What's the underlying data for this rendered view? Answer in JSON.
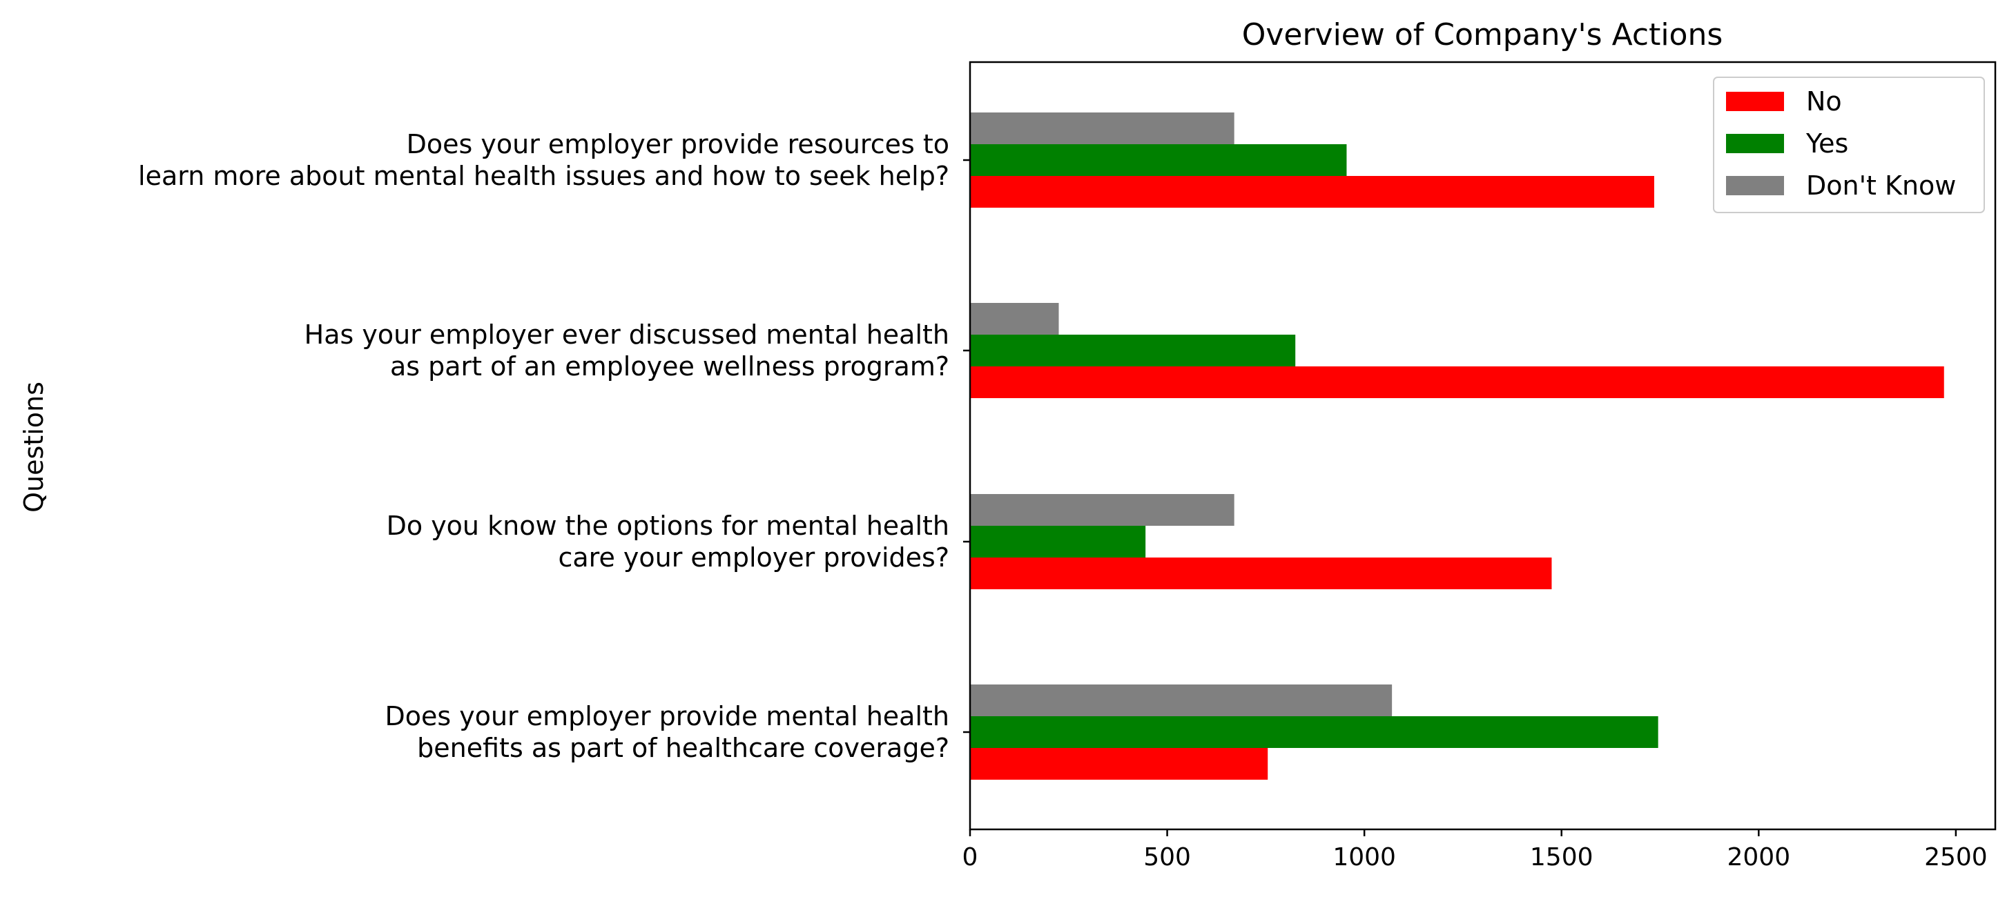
{
  "chart_data": {
    "type": "bar",
    "orientation": "horizontal",
    "title": "Overview of Company's Actions",
    "xlabel": "",
    "ylabel": "Questions",
    "xlim": [
      0,
      2600
    ],
    "xticks": [
      0,
      500,
      1000,
      1500,
      2000,
      2500
    ],
    "grid": false,
    "legend_position": "top-right",
    "categories": [
      [
        "Does your employer provide mental health ",
        "benefits as part of healthcare coverage?"
      ],
      [
        "Do you know the options for mental health ",
        "care your employer provides?"
      ],
      [
        "Has your employer ever discussed mental health",
        "as part of an employee wellness program?"
      ],
      [
        "Does your employer provide resources to ",
        "learn more about mental health issues and how to seek help?"
      ]
    ],
    "series": [
      {
        "name": "No",
        "color": "#ff0000",
        "values": [
          755,
          1475,
          2470,
          1735
        ]
      },
      {
        "name": "Yes",
        "color": "#008000",
        "values": [
          1745,
          445,
          825,
          955
        ]
      },
      {
        "name": "Don't Know",
        "color": "#808080",
        "values": [
          1070,
          670,
          225,
          670
        ]
      }
    ]
  }
}
